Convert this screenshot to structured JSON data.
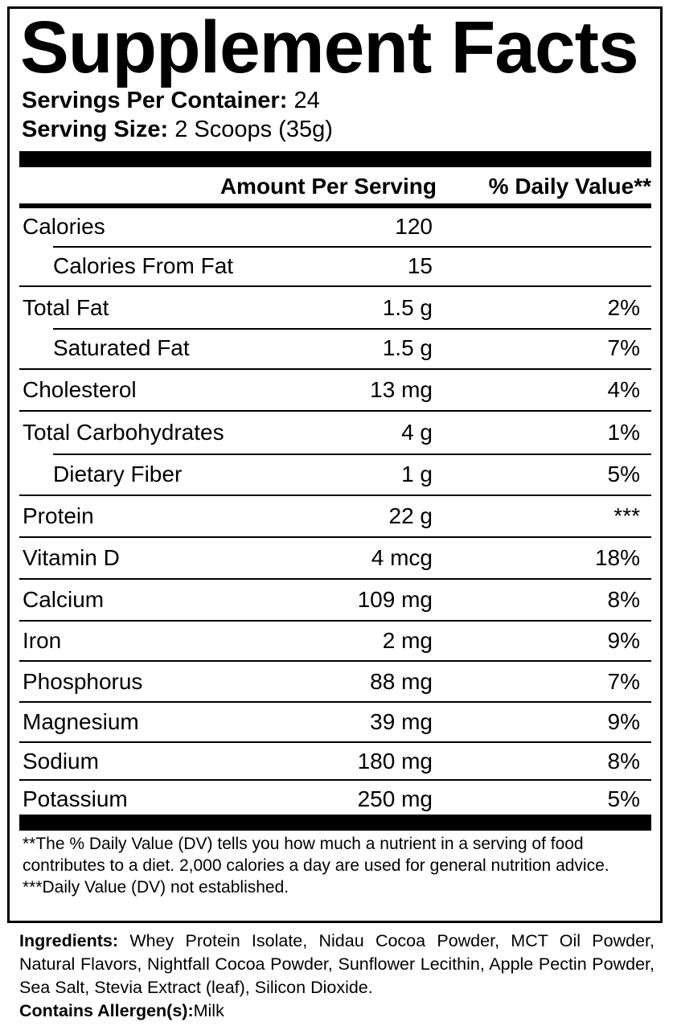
{
  "title": "Supplement Facts",
  "servings_per_container": {
    "label": "Servings Per Container:",
    "value": "24"
  },
  "serving_size": {
    "label": "Serving Size:",
    "value": "2 Scoops (35g)"
  },
  "header": {
    "amount": "Amount Per Serving",
    "dv": "% Daily Value**"
  },
  "rows": [
    {
      "name": "Calories",
      "amount": "120",
      "dv": ""
    },
    {
      "name": "Calories From Fat",
      "amount": "15",
      "dv": ""
    },
    {
      "name": "Total Fat",
      "amount": "1.5 g",
      "dv": "2%"
    },
    {
      "name": "Saturated Fat",
      "amount": "1.5 g",
      "dv": "7%"
    },
    {
      "name": "Cholesterol",
      "amount": "13 mg",
      "dv": "4%"
    },
    {
      "name": "Total Carbohydrates",
      "amount": "4 g",
      "dv": "1%"
    },
    {
      "name": "Dietary Fiber",
      "amount": "1 g",
      "dv": "5%"
    },
    {
      "name": "Protein",
      "amount": "22 g",
      "dv": "***"
    },
    {
      "name": "Vitamin D",
      "amount": "4 mcg",
      "dv": "18%"
    },
    {
      "name": "Calcium",
      "amount": "109 mg",
      "dv": "8%"
    },
    {
      "name": "Iron",
      "amount": "2 mg",
      "dv": "9%"
    },
    {
      "name": "Phosphorus",
      "amount": "88 mg",
      "dv": "7%"
    },
    {
      "name": "Magnesium",
      "amount": "39 mg",
      "dv": "9%"
    },
    {
      "name": "Sodium",
      "amount": "180 mg",
      "dv": "8%"
    },
    {
      "name": "Potassium",
      "amount": "250 mg",
      "dv": "5%"
    }
  ],
  "footnotes": [
    "**The % Daily Value (DV) tells you how much a nutrient in a serving of food contributes to a diet. 2,000 calories a day are used for general nutrition advice.",
    "***Daily Value (DV) not established."
  ],
  "ingredients": {
    "label": "Ingredients:",
    "text": "Whey Protein Isolate, Nidau Cocoa Powder, MCT Oil Powder, Natural Flavors, Nightfall Cocoa Powder, Sunflower Lecithin, Apple Pectin Powder, Sea Salt, Stevia Extract (leaf), Silicon Dioxide."
  },
  "allergens": {
    "label": "Contains Allergen(s):",
    "text": "Milk"
  }
}
